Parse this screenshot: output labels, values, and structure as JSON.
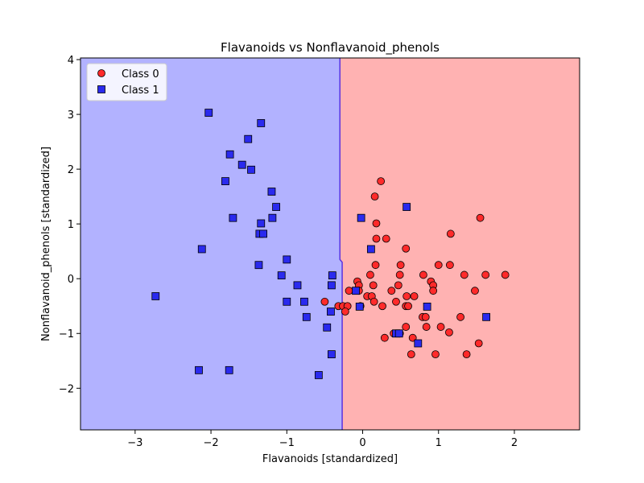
{
  "chart_data": {
    "type": "scatter",
    "title": "Flavanoids vs Nonflavanoid_phenols",
    "xlabel": "Flavanoids [standardized]",
    "ylabel": "Nonflavanoid_phenols [standardized]",
    "xlim": [
      -3.72,
      2.86
    ],
    "ylim": [
      -2.76,
      4.03
    ],
    "x_ticks": [
      -3,
      -2,
      -1,
      0,
      1,
      2
    ],
    "y_ticks": [
      -2,
      -1,
      0,
      1,
      2,
      3,
      4
    ],
    "grid": false,
    "legend": "top-left",
    "decision_boundary": {
      "upper": [
        [
          -0.3,
          4.03
        ],
        [
          -0.3,
          0.35
        ],
        [
          -0.27,
          0.3
        ],
        [
          -0.27,
          -2.76
        ]
      ],
      "left_region_class": "Class 1",
      "right_region_class": "Class 0"
    },
    "colors": {
      "class0_region": "#ffb2b2",
      "class1_region": "#b2b2ff",
      "class0_marker": "#ff2a2a",
      "class1_marker": "#2a2aee",
      "boundary": "#5b33e0"
    },
    "series": [
      {
        "name": "Class 0",
        "marker": "circle",
        "points": [
          [
            0.24,
            1.78
          ],
          [
            0.16,
            1.5
          ],
          [
            1.55,
            1.11
          ],
          [
            0.18,
            1.01
          ],
          [
            1.16,
            0.82
          ],
          [
            0.18,
            0.73
          ],
          [
            0.31,
            0.73
          ],
          [
            0.57,
            0.55
          ],
          [
            0.17,
            0.25
          ],
          [
            0.5,
            0.25
          ],
          [
            1.0,
            0.25
          ],
          [
            1.15,
            0.25
          ],
          [
            0.1,
            0.07
          ],
          [
            0.49,
            0.07
          ],
          [
            0.8,
            0.07
          ],
          [
            1.34,
            0.07
          ],
          [
            1.62,
            0.07
          ],
          [
            1.88,
            0.07
          ],
          [
            -0.07,
            -0.05
          ],
          [
            0.9,
            -0.05
          ],
          [
            -0.05,
            -0.12
          ],
          [
            0.14,
            -0.12
          ],
          [
            0.47,
            -0.12
          ],
          [
            0.93,
            -0.12
          ],
          [
            -0.18,
            -0.22
          ],
          [
            -0.05,
            -0.22
          ],
          [
            0.38,
            -0.22
          ],
          [
            0.93,
            -0.22
          ],
          [
            1.48,
            -0.22
          ],
          [
            0.06,
            -0.32
          ],
          [
            0.12,
            -0.32
          ],
          [
            0.58,
            -0.32
          ],
          [
            0.68,
            -0.32
          ],
          [
            -0.5,
            -0.42
          ],
          [
            0.15,
            -0.42
          ],
          [
            0.44,
            -0.42
          ],
          [
            -0.32,
            -0.5
          ],
          [
            -0.26,
            -0.5
          ],
          [
            -0.2,
            -0.5
          ],
          [
            -0.03,
            -0.5
          ],
          [
            0.26,
            -0.5
          ],
          [
            0.57,
            -0.5
          ],
          [
            0.6,
            -0.5
          ],
          [
            -0.23,
            -0.6
          ],
          [
            0.79,
            -0.7
          ],
          [
            0.83,
            -0.7
          ],
          [
            1.29,
            -0.7
          ],
          [
            0.57,
            -0.88
          ],
          [
            0.84,
            -0.88
          ],
          [
            1.03,
            -0.88
          ],
          [
            1.14,
            -0.98
          ],
          [
            0.41,
            -1.0
          ],
          [
            0.49,
            -1.0
          ],
          [
            0.29,
            -1.08
          ],
          [
            0.66,
            -1.08
          ],
          [
            1.53,
            -1.18
          ],
          [
            0.64,
            -1.38
          ],
          [
            0.96,
            -1.38
          ],
          [
            1.37,
            -1.38
          ]
        ]
      },
      {
        "name": "Class 1",
        "marker": "square",
        "points": [
          [
            -2.03,
            3.03
          ],
          [
            -1.34,
            2.84
          ],
          [
            -1.51,
            2.55
          ],
          [
            -1.75,
            2.27
          ],
          [
            -1.59,
            2.08
          ],
          [
            -1.47,
            1.99
          ],
          [
            -1.81,
            1.78
          ],
          [
            -1.2,
            1.59
          ],
          [
            -1.14,
            1.31
          ],
          [
            0.58,
            1.31
          ],
          [
            -1.71,
            1.11
          ],
          [
            -1.19,
            1.11
          ],
          [
            -0.02,
            1.11
          ],
          [
            -1.34,
            1.01
          ],
          [
            -1.36,
            0.82
          ],
          [
            -1.31,
            0.82
          ],
          [
            -2.12,
            0.54
          ],
          [
            0.11,
            0.54
          ],
          [
            -1.0,
            0.35
          ],
          [
            -1.37,
            0.25
          ],
          [
            -1.07,
            0.06
          ],
          [
            -0.4,
            0.06
          ],
          [
            -0.86,
            -0.12
          ],
          [
            -0.41,
            -0.12
          ],
          [
            -0.09,
            -0.22
          ],
          [
            -2.73,
            -0.32
          ],
          [
            -1.0,
            -0.42
          ],
          [
            -0.77,
            -0.42
          ],
          [
            -0.04,
            -0.51
          ],
          [
            0.85,
            -0.51
          ],
          [
            -0.42,
            -0.6
          ],
          [
            -0.74,
            -0.7
          ],
          [
            1.63,
            -0.7
          ],
          [
            -0.47,
            -0.89
          ],
          [
            0.44,
            -1.0
          ],
          [
            0.48,
            -1.0
          ],
          [
            0.73,
            -1.18
          ],
          [
            -0.41,
            -1.38
          ],
          [
            -2.16,
            -1.67
          ],
          [
            -1.76,
            -1.67
          ],
          [
            -0.58,
            -1.76
          ]
        ]
      }
    ]
  }
}
